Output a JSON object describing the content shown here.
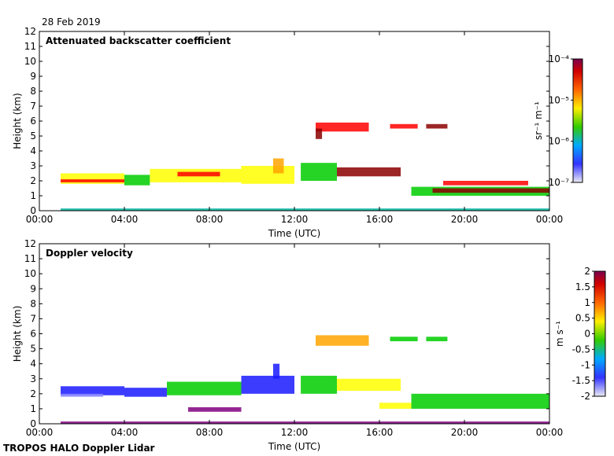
{
  "date": "28 Feb 2019",
  "footer": "TROPOS HALO Doppler Lidar",
  "colors": {
    "dark_red": "#8b0000",
    "red": "#ff0000",
    "orange": "#ffa500",
    "yellow": "#ffff00",
    "green": "#00cc00",
    "teal": "#00b3a0",
    "blue": "#1a1aff",
    "light_blue": "#8888ff",
    "violet": "#800080"
  },
  "chart_data": [
    {
      "type": "heatmap",
      "title": "Attenuated backscatter coefficient",
      "xlabel": "Time (UTC)",
      "ylabel": "Height (km)",
      "x_ticks": [
        "00:00",
        "04:00",
        "08:00",
        "12:00",
        "16:00",
        "20:00",
        "00:00"
      ],
      "xlim": [
        0,
        24
      ],
      "ylim": [
        0,
        12
      ],
      "y_ticks": [
        0,
        1,
        2,
        3,
        4,
        5,
        6,
        7,
        8,
        9,
        10,
        11,
        12
      ],
      "colorbar": {
        "label": "sr⁻¹ m⁻¹",
        "scale": "log",
        "ticks": [
          "10⁻⁴",
          "10⁻⁵",
          "10⁻⁶",
          "10⁻⁷"
        ]
      }
    },
    {
      "type": "heatmap",
      "title": "Doppler velocity",
      "xlabel": "Time (UTC)",
      "ylabel": "Height (km)",
      "x_ticks": [
        "00:00",
        "04:00",
        "08:00",
        "12:00",
        "16:00",
        "20:00",
        "00:00"
      ],
      "xlim": [
        0,
        24
      ],
      "ylim": [
        0,
        12
      ],
      "y_ticks": [
        0,
        1,
        2,
        3,
        4,
        5,
        6,
        7,
        8,
        9,
        10,
        11,
        12
      ],
      "colorbar": {
        "label": "m s⁻¹",
        "scale": "linear",
        "range": [
          -2,
          2
        ],
        "ticks": [
          "2",
          "1.5",
          "1",
          "0.5",
          "0",
          "-0.5",
          "-1",
          "-1.5",
          "-2"
        ]
      }
    }
  ]
}
